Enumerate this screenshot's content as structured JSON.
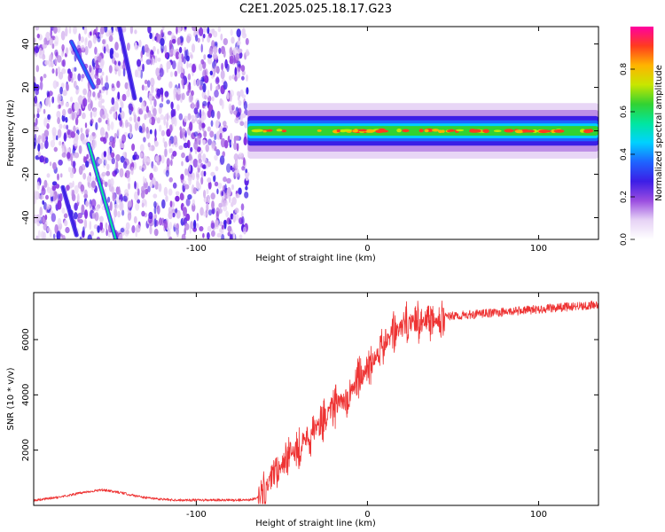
{
  "title": "C2E1.2025.025.18.17.G23",
  "chart_data": [
    {
      "type": "heatmap",
      "xlabel": "Height of straight line (km)",
      "ylabel": "Frequency (Hz)",
      "xlim": [
        -195,
        135
      ],
      "ylim": [
        -50,
        48
      ],
      "xticks": [
        -100,
        0,
        100
      ],
      "yticks": [
        -40,
        -20,
        0,
        20,
        40
      ],
      "grid": false,
      "colorbar": {
        "label": "Normalized spectral amplitude",
        "range": [
          0,
          1
        ],
        "ticks": [
          "0.0",
          "0.2",
          "0.4",
          "0.6",
          "0.8"
        ],
        "colormap": [
          "#ffffff",
          "#e6d2f5",
          "#9a4de0",
          "#3c1ee6",
          "#1e64ff",
          "#00d2ff",
          "#00e6a0",
          "#32d232",
          "#c8e600",
          "#ffb400",
          "#ff3c1e",
          "#ff00a0"
        ]
      },
      "features": [
        {
          "name": "noise",
          "x_range": [
            -195,
            -70
          ],
          "amplitude": 0.15
        },
        {
          "name": "streak",
          "points": [
            [
              -173,
              41
            ],
            [
              -160,
              20
            ]
          ],
          "amplitude": 0.4
        },
        {
          "name": "streak",
          "points": [
            [
              -163,
              -6
            ],
            [
              -147,
              -50
            ]
          ],
          "amplitude": 0.5
        },
        {
          "name": "streak",
          "points": [
            [
              -145,
              48
            ],
            [
              -136,
              15
            ]
          ],
          "amplitude": 0.3
        },
        {
          "name": "streak",
          "points": [
            [
              -178,
              -26
            ],
            [
              -170,
              -48
            ]
          ],
          "amplitude": 0.25
        },
        {
          "name": "carrier",
          "x_range": [
            -70,
            135
          ],
          "center_hz": 0,
          "width_hz": 4,
          "amplitude": 0.85
        }
      ]
    },
    {
      "type": "line",
      "xlabel": "Height of straight line (km)",
      "ylabel": "SNR (10 * v/v)",
      "xlim": [
        -195,
        135
      ],
      "ylim": [
        0,
        7700
      ],
      "xticks": [
        -100,
        0,
        100
      ],
      "yticks": [
        2000,
        4000,
        6000
      ],
      "grid": false,
      "series": [
        {
          "color": "#ee3333",
          "x": [
            -195,
            -180,
            -165,
            -155,
            -145,
            -130,
            -115,
            -100,
            -90,
            -80,
            -70,
            -66,
            -62,
            -60,
            -56,
            -52,
            -48,
            -44,
            -40,
            -35,
            -30,
            -25,
            -20,
            -15,
            -10,
            -5,
            0,
            5,
            10,
            15,
            20,
            25,
            30,
            35,
            40,
            50,
            60,
            70,
            80,
            90,
            100,
            110,
            120,
            135
          ],
          "y": [
            180,
            300,
            480,
            560,
            470,
            280,
            200,
            190,
            190,
            190,
            200,
            240,
            330,
            500,
            1000,
            1300,
            1700,
            1900,
            2150,
            2500,
            2800,
            3200,
            3500,
            3800,
            4150,
            4600,
            5000,
            5450,
            5850,
            6200,
            6450,
            6600,
            6700,
            6750,
            6800,
            6850,
            6900,
            6950,
            7000,
            7050,
            7100,
            7150,
            7200,
            7250
          ]
        }
      ]
    }
  ]
}
